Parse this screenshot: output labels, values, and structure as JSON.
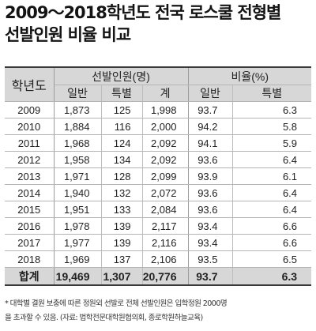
{
  "title_line1": "2009～2018학년도 전국 로스쿨 전형별",
  "title_line2": "선발인원 비율 비교",
  "table": {
    "headers": {
      "year": "학년도",
      "group_count": "선발인원(명)",
      "group_rate": "비율(%)",
      "general": "일반",
      "special": "특별",
      "total": "계",
      "rate_general": "일반",
      "rate_special": "특별"
    },
    "rows": [
      [
        "2009",
        "1,873",
        "125",
        "1,998",
        "93.7",
        "6.3"
      ],
      [
        "2010",
        "1,884",
        "116",
        "2,000",
        "94.2",
        "5.8"
      ],
      [
        "2011",
        "1,968",
        "124",
        "2,092",
        "94.1",
        "5.9"
      ],
      [
        "2012",
        "1,958",
        "134",
        "2,092",
        "93.6",
        "6.4"
      ],
      [
        "2013",
        "1,971",
        "128",
        "2,099",
        "93.9",
        "6.1"
      ],
      [
        "2014",
        "1,940",
        "132",
        "2,072",
        "93.6",
        "6.4"
      ],
      [
        "2015",
        "1,951",
        "133",
        "2,084",
        "93.6",
        "6.4"
      ],
      [
        "2016",
        "1,978",
        "139",
        "2,117",
        "93.4",
        "6.6"
      ],
      [
        "2017",
        "1,977",
        "139",
        "2,116",
        "93.4",
        "6.6"
      ],
      [
        "2018",
        "1,969",
        "137",
        "2,106",
        "93.5",
        "6.5"
      ]
    ],
    "total": [
      "합계",
      "19,469",
      "1,307",
      "20,776",
      "93.7",
      "6.3"
    ]
  },
  "note_line1": "* 대학별 결원 보충에 따른 정원외 선발로 전체 선발인원은 입학정원 2000명",
  "note_line2": "을 초과할 수 있음. (자료: 법학전문대학원협의회, 종로학원하늘교육)"
}
